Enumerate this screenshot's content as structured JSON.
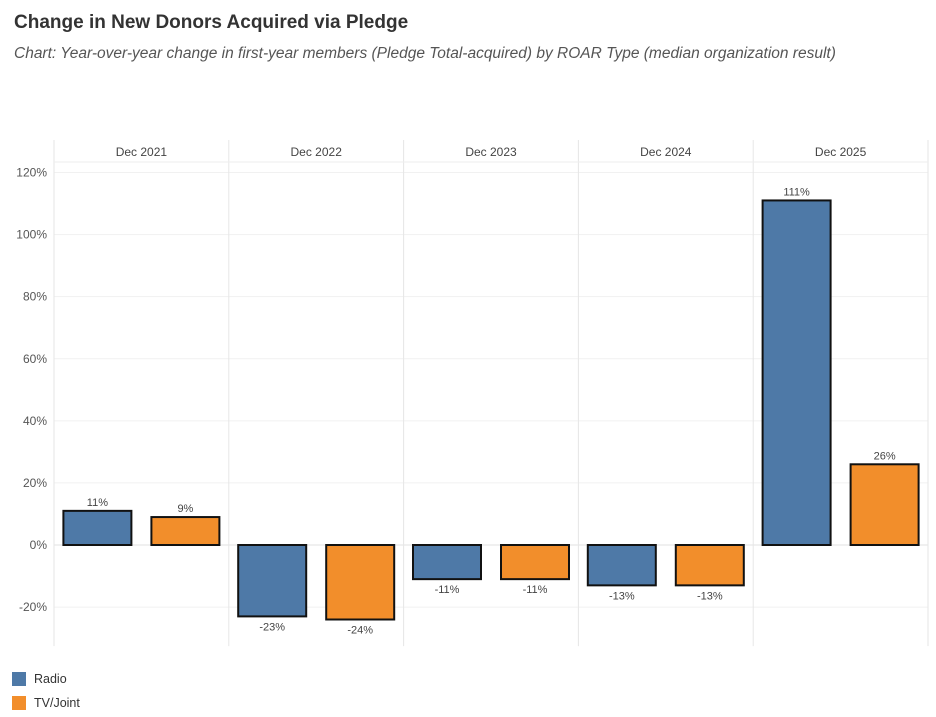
{
  "title": "Change in New Donors Acquired via Pledge",
  "subtitle": "Chart: Year-over-year change in first-year members (Pledge Total-acquired) by ROAR Type (median organization result)",
  "chart_data": {
    "type": "bar",
    "categories": [
      "Dec 2021",
      "Dec 2022",
      "Dec 2023",
      "Dec 2024",
      "Dec 2025"
    ],
    "series": [
      {
        "name": "Radio",
        "color": "#4e79a7",
        "values": [
          11,
          -23,
          -11,
          -13,
          111
        ],
        "labels": [
          "11%",
          "-23%",
          "-11%",
          "-13%",
          "111%"
        ]
      },
      {
        "name": "TV/Joint",
        "color": "#f28e2b",
        "values": [
          9,
          -24,
          -11,
          -13,
          26
        ],
        "labels": [
          "9%",
          "-24%",
          "-11%",
          "-13%",
          "26%"
        ]
      }
    ],
    "ylim": [
      -30,
      120
    ],
    "yticks": [
      -20,
      0,
      20,
      40,
      60,
      80,
      100,
      120
    ],
    "ytick_labels": [
      "-20%",
      "0%",
      "20%",
      "40%",
      "60%",
      "80%",
      "100%",
      "120%"
    ],
    "xlabel": "",
    "ylabel": "",
    "grid": true,
    "legend_position": "bottom-left"
  },
  "legend": [
    {
      "label": "Radio",
      "color": "#4e79a7"
    },
    {
      "label": "TV/Joint",
      "color": "#f28e2b"
    }
  ]
}
